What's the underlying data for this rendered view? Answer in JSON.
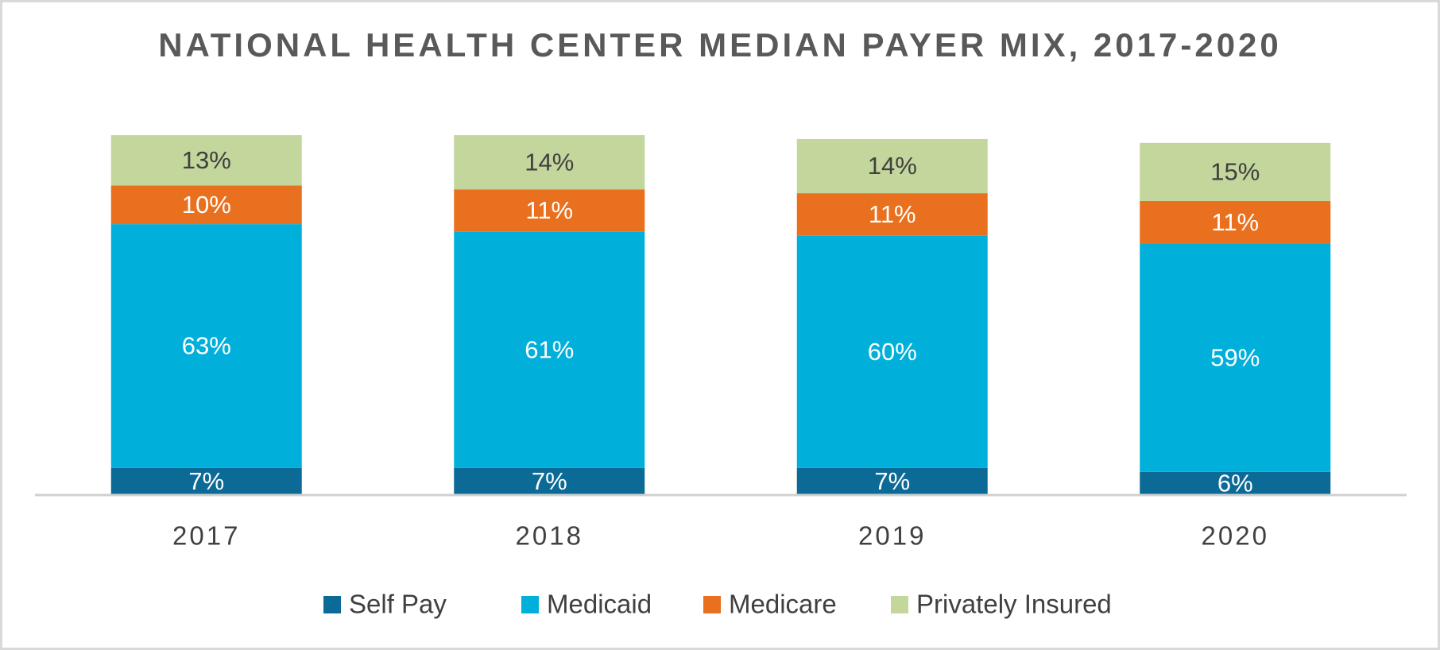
{
  "chart_data": {
    "type": "stacked_bar",
    "title": "NATIONAL HEALTH CENTER MEDIAN PAYER MIX, 2017-2020",
    "categories": [
      "2017",
      "2018",
      "2019",
      "2020"
    ],
    "series": [
      {
        "name": "Self Pay",
        "color": "#0c6a97",
        "values": [
          7,
          7,
          7,
          6
        ],
        "value_labels": [
          "7%",
          "7%",
          "7%",
          "6%"
        ],
        "label_color": "#ffffff"
      },
      {
        "name": "Medicaid",
        "color": "#00b0da",
        "values": [
          63,
          61,
          60,
          59
        ],
        "value_labels": [
          "63%",
          "61%",
          "60%",
          "59%"
        ],
        "label_color": "#ffffff"
      },
      {
        "name": "Medicare",
        "color": "#e8701e",
        "values": [
          10,
          11,
          11,
          11
        ],
        "value_labels": [
          "10%",
          "11%",
          "11%",
          "11%"
        ],
        "label_color": "#ffffff"
      },
      {
        "name": "Privately Insured",
        "color": "#c3d69b",
        "values": [
          13,
          14,
          14,
          15
        ],
        "value_labels": [
          "13%",
          "14%",
          "14%",
          "15%"
        ],
        "label_color": "#404040"
      }
    ],
    "legend": "bottom"
  }
}
